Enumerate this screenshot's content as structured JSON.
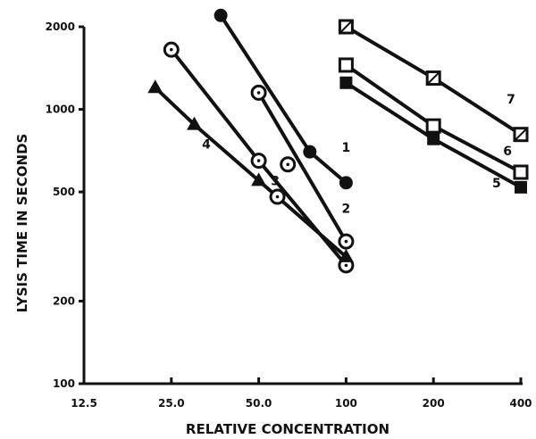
{
  "chart_data": {
    "type": "scatter",
    "xlabel": "RELATIVE CONCENTRATION",
    "ylabel": "LYSIS TIME IN SECONDS",
    "x_scale": "log",
    "y_scale": "log",
    "xlim": [
      12.5,
      400
    ],
    "ylim": [
      100,
      2000
    ],
    "x_ticks": [
      "12.5",
      "25.0",
      "50.0",
      "100",
      "200",
      "400"
    ],
    "x_tick_values": [
      12.5,
      25,
      50,
      100,
      200,
      400
    ],
    "y_ticks": [
      "2000",
      "1000",
      "500",
      "200",
      "100"
    ],
    "y_tick_values": [
      2000,
      1000,
      500,
      200,
      100
    ],
    "grid": false,
    "series": [
      {
        "name": "1",
        "marker": "filled-circle",
        "x": [
          37,
          75,
          100
        ],
        "y": [
          2200,
          700,
          540
        ]
      },
      {
        "name": "2",
        "marker": "open-circle",
        "x": [
          50,
          100
        ],
        "y": [
          1150,
          330
        ]
      },
      {
        "name": "3",
        "marker": "open-circle",
        "x": [
          25,
          50,
          100
        ],
        "y": [
          1650,
          650,
          270
        ]
      },
      {
        "name": "4",
        "marker": "filled-triangle",
        "x": [
          22,
          30,
          50,
          100
        ],
        "y": [
          1200,
          880,
          550,
          290
        ]
      },
      {
        "name": "5",
        "marker": "filled-square",
        "x": [
          100,
          200,
          400
        ],
        "y": [
          1250,
          780,
          520
        ]
      },
      {
        "name": "6",
        "marker": "open-square",
        "x": [
          100,
          200,
          400
        ],
        "y": [
          1450,
          870,
          590
        ]
      },
      {
        "name": "7",
        "marker": "hatched-square",
        "x": [
          100,
          200,
          400
        ],
        "y": [
          2000,
          1300,
          810
        ]
      }
    ],
    "extra_markers": [
      {
        "series": "3",
        "marker": "open-circle",
        "x": 63,
        "y": 630
      },
      {
        "series": "3",
        "marker": "open-circle",
        "x": 58,
        "y": 480
      }
    ],
    "line_labels": [
      {
        "text": "1",
        "x": 100,
        "y": 700
      },
      {
        "text": "2",
        "x": 100,
        "y": 420
      },
      {
        "text": "3",
        "x": 57,
        "y": 530
      },
      {
        "text": "4",
        "x": 33,
        "y": 720
      },
      {
        "text": "5",
        "x": 330,
        "y": 520
      },
      {
        "text": "6",
        "x": 360,
        "y": 680
      },
      {
        "text": "7",
        "x": 370,
        "y": 1050
      }
    ]
  }
}
